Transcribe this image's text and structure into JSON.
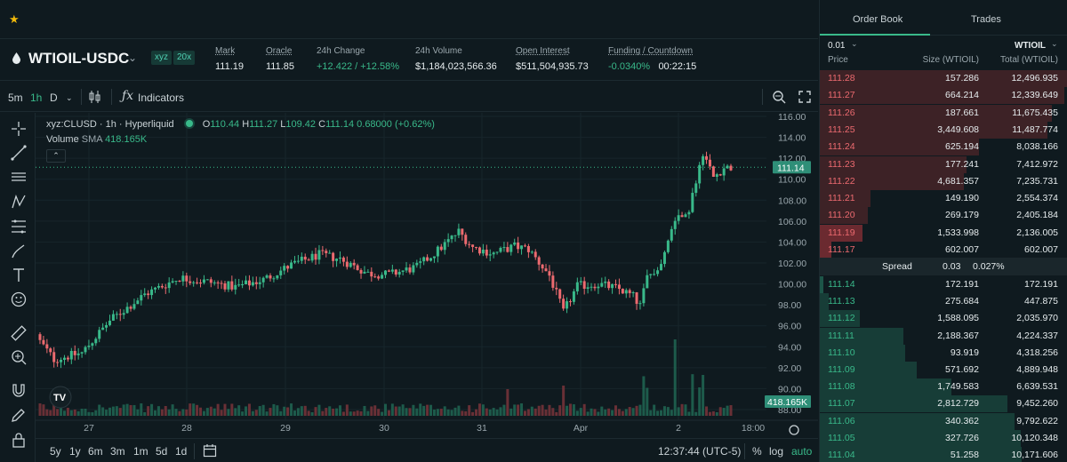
{
  "market": {
    "name": "WTIOIL-USDC",
    "dex": "xyz",
    "leverage": "20x",
    "stats": [
      {
        "label": "Mark",
        "value": "111.19",
        "underline": true,
        "green": false
      },
      {
        "label": "Oracle",
        "value": "111.85",
        "underline": true,
        "green": false
      },
      {
        "label": "24h Change",
        "value": "+12.422 / +12.58%",
        "underline": false,
        "green": true
      },
      {
        "label": "24h Volume",
        "value": "$1,184,023,566.36",
        "underline": false,
        "green": false
      },
      {
        "label": "Open Interest",
        "value": "$511,504,935.73",
        "underline": true,
        "green": false
      }
    ],
    "funding_label": "Funding / Countdown",
    "funding_rate": "-0.0340%",
    "countdown": "00:22:15"
  },
  "chart_toolbar": {
    "intervals": [
      "5m",
      "1h",
      "D"
    ],
    "active_interval": "1h",
    "indicators_label": "Indicators"
  },
  "legend": {
    "symbol": "xyz:CLUSD · 1h · Hyperliquid",
    "o_label": "O",
    "o": "110.44",
    "h_label": "H",
    "h": "111.27",
    "l_label": "L",
    "l": "109.42",
    "c_label": "C",
    "c": "111.14",
    "change": "0.68000 (+0.62%)",
    "volume_label": "Volume",
    "sma_label": "SMA",
    "volume_value": "418.165K"
  },
  "price_scale": {
    "ticks": [
      "116.00",
      "114.00",
      "112.00",
      "110.00",
      "108.00",
      "106.00",
      "104.00",
      "102.00",
      "100.00",
      "98.00",
      "96.00",
      "94.00",
      "92.00",
      "90.00",
      "88.00"
    ],
    "current_price": "111.14",
    "volume_tag": "418.165K"
  },
  "time_axis": {
    "labels": [
      "27",
      "28",
      "29",
      "30",
      "31",
      "Apr",
      "2",
      "18:00"
    ]
  },
  "bottom_bar": {
    "ranges": [
      "5y",
      "1y",
      "6m",
      "3m",
      "1m",
      "5d",
      "1d"
    ],
    "clock": "12:37:44 (UTC-5)",
    "percent_label": "%",
    "log_label": "log",
    "auto_label": "auto"
  },
  "orderbook": {
    "tabs": [
      "Order Book",
      "Trades"
    ],
    "active_tab": "Order Book",
    "tick_size": "0.01",
    "unit": "WTIOIL",
    "columns": [
      "Price",
      "Size (WTIOIL)",
      "Total (WTIOIL)"
    ],
    "asks": [
      {
        "price": "111.28",
        "size": "157.286",
        "total": "12,496.935"
      },
      {
        "price": "111.27",
        "size": "664.214",
        "total": "12,339.649"
      },
      {
        "price": "111.26",
        "size": "187.661",
        "total": "11,675.435"
      },
      {
        "price": "111.25",
        "size": "3,449.608",
        "total": "11,487.774"
      },
      {
        "price": "111.24",
        "size": "625.194",
        "total": "8,038.166"
      },
      {
        "price": "111.23",
        "size": "177.241",
        "total": "7,412.972"
      },
      {
        "price": "111.22",
        "size": "4,681.357",
        "total": "7,235.731"
      },
      {
        "price": "111.21",
        "size": "149.190",
        "total": "2,554.374"
      },
      {
        "price": "111.20",
        "size": "269.179",
        "total": "2,405.184"
      },
      {
        "price": "111.19",
        "size": "1,533.998",
        "total": "2,136.005"
      },
      {
        "price": "111.17",
        "size": "602.007",
        "total": "602.007"
      }
    ],
    "spread_label": "Spread",
    "spread_value": "0.03",
    "spread_pct": "0.027%",
    "bids": [
      {
        "price": "111.14",
        "size": "172.191",
        "total": "172.191"
      },
      {
        "price": "111.13",
        "size": "275.684",
        "total": "447.875"
      },
      {
        "price": "111.12",
        "size": "1,588.095",
        "total": "2,035.970"
      },
      {
        "price": "111.11",
        "size": "2,188.367",
        "total": "4,224.337"
      },
      {
        "price": "111.10",
        "size": "93.919",
        "total": "4,318.256"
      },
      {
        "price": "111.09",
        "size": "571.692",
        "total": "4,889.948"
      },
      {
        "price": "111.08",
        "size": "1,749.583",
        "total": "6,639.531"
      },
      {
        "price": "111.07",
        "size": "2,812.729",
        "total": "9,452.260"
      },
      {
        "price": "111.06",
        "size": "340.362",
        "total": "9,792.622"
      },
      {
        "price": "111.05",
        "size": "327.726",
        "total": "10,120.348"
      },
      {
        "price": "111.04",
        "size": "51.258",
        "total": "10,171.606"
      }
    ]
  },
  "colors": {
    "up": "#39b98a",
    "down": "#ec6a6f",
    "accent": "#39b98a",
    "star": "#f0b90b"
  }
}
